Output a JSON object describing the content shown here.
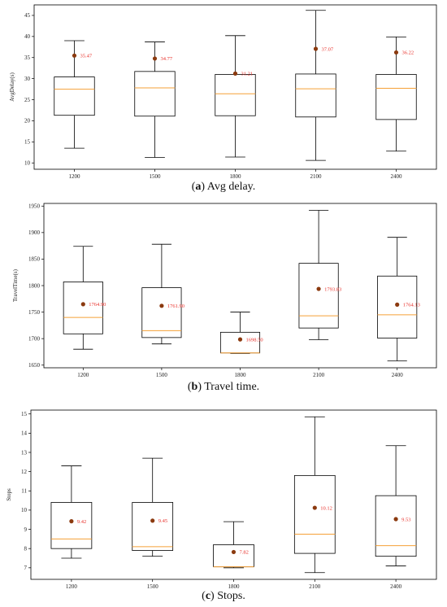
{
  "chart_data": [
    {
      "type": "box",
      "caption_letter": "a",
      "caption_rest": " Avg delay.",
      "ylabel": "AvgDelay(s)",
      "categories": [
        "1200",
        "1500",
        "1800",
        "2100",
        "2400"
      ],
      "ylim": [
        8.5,
        47.5
      ],
      "yticks": [
        10,
        15,
        20,
        25,
        30,
        35,
        40,
        45
      ],
      "box_stats": [
        {
          "whislo": 13.5,
          "q1": 21.3,
          "med": 27.5,
          "q3": 30.4,
          "whishi": 39.0
        },
        {
          "whislo": 11.3,
          "q1": 21.1,
          "med": 27.8,
          "q3": 31.7,
          "whishi": 38.7
        },
        {
          "whislo": 11.4,
          "q1": 21.2,
          "med": 26.4,
          "q3": 31.0,
          "whishi": 40.2
        },
        {
          "whislo": 10.6,
          "q1": 20.9,
          "med": 27.6,
          "q3": 31.1,
          "whishi": 46.2
        },
        {
          "whislo": 12.8,
          "q1": 20.3,
          "med": 27.7,
          "q3": 31.0,
          "whishi": 39.9
        }
      ],
      "means": [
        35.47,
        34.77,
        31.21,
        37.07,
        36.22
      ],
      "mean_labels": [
        "35.47",
        "34.77",
        "31.21",
        "37.07",
        "36.22"
      ]
    },
    {
      "type": "box",
      "caption_letter": "b",
      "caption_rest": " Travel time.",
      "ylabel": "TravelTime(s)",
      "categories": [
        "1200",
        "1500",
        "1800",
        "2100",
        "2400"
      ],
      "ylim": [
        1645,
        1955
      ],
      "yticks": [
        1650,
        1700,
        1750,
        1800,
        1850,
        1900,
        1950
      ],
      "box_stats": [
        {
          "whislo": 1680,
          "q1": 1709,
          "med": 1740,
          "q3": 1807,
          "whishi": 1874
        },
        {
          "whislo": 1690,
          "q1": 1702,
          "med": 1715,
          "q3": 1796,
          "whishi": 1878
        },
        {
          "whislo": 1672,
          "q1": 1673,
          "med": 1673,
          "q3": 1712,
          "whishi": 1750
        },
        {
          "whislo": 1698,
          "q1": 1720,
          "med": 1743,
          "q3": 1842,
          "whishi": 1942
        },
        {
          "whislo": 1658,
          "q1": 1701,
          "med": 1745,
          "q3": 1818,
          "whishi": 1891
        }
      ],
      "means": [
        1764.9,
        1761.9,
        1698.5,
        1793.8,
        1764.1
      ],
      "mean_labels": [
        "1764.90",
        "1761.90",
        "1698.50",
        "1793.83",
        "1764.13"
      ]
    },
    {
      "type": "box",
      "caption_letter": "c",
      "caption_rest": " Stops.",
      "ylabel": "Stops",
      "categories": [
        "1200",
        "1500",
        "1800",
        "2100",
        "2400"
      ],
      "ylim": [
        6.4,
        15.2
      ],
      "yticks": [
        7,
        8,
        9,
        10,
        11,
        12,
        13,
        14,
        15
      ],
      "box_stats": [
        {
          "whislo": 7.5,
          "q1": 8.0,
          "med": 8.5,
          "q3": 10.4,
          "whishi": 12.3
        },
        {
          "whislo": 7.6,
          "q1": 7.9,
          "med": 8.1,
          "q3": 10.4,
          "whishi": 12.7
        },
        {
          "whislo": 7.0,
          "q1": 7.05,
          "med": 7.05,
          "q3": 8.2,
          "whishi": 9.4
        },
        {
          "whislo": 6.75,
          "q1": 7.75,
          "med": 8.75,
          "q3": 11.8,
          "whishi": 14.85
        },
        {
          "whislo": 7.1,
          "q1": 7.6,
          "med": 8.15,
          "q3": 10.75,
          "whishi": 13.35
        }
      ],
      "means": [
        9.42,
        9.45,
        7.82,
        10.12,
        9.53
      ],
      "mean_labels": [
        "9.42",
        "9.45",
        "7.82",
        "10.12",
        "9.53"
      ]
    }
  ],
  "colors": {
    "box": "#000000",
    "median": "#f5a037",
    "mean_marker": "#8b3a0f",
    "mean_text": "#e8302a"
  }
}
